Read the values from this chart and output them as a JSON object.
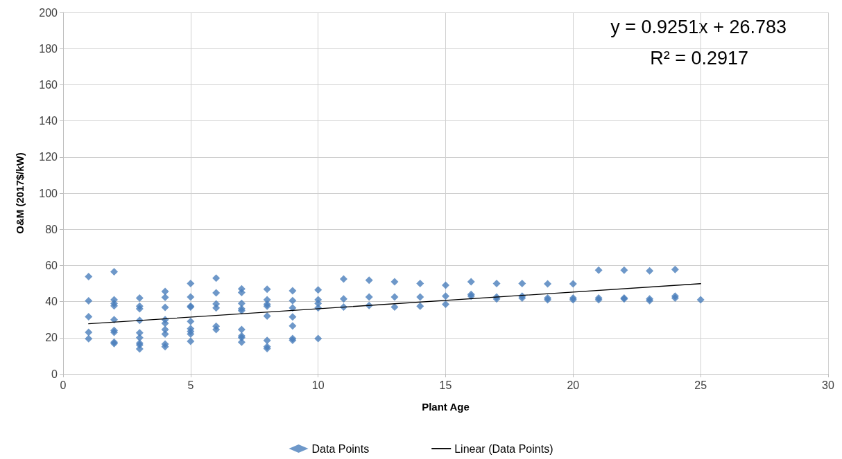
{
  "chart_data": {
    "type": "scatter",
    "xlabel": "Plant Age",
    "ylabel": "O&M (2017$/kW)",
    "xlim": [
      0,
      30
    ],
    "xticks": [
      0,
      5,
      10,
      15,
      20,
      25,
      30
    ],
    "ylim": [
      0,
      200
    ],
    "yticks": [
      0,
      20,
      40,
      60,
      80,
      100,
      120,
      140,
      160,
      180,
      200
    ],
    "grid": true,
    "legend": "bottom",
    "marker": "diamond",
    "annotations": [
      "y = 0.9251x + 26.783",
      "R² = 0.2917"
    ],
    "series": [
      {
        "name": "Data Points",
        "color": "#4a7ebb",
        "x": [
          1,
          1,
          1,
          1,
          1,
          2,
          2,
          2,
          2,
          2,
          2,
          2,
          2,
          2,
          3,
          3,
          3,
          3,
          3,
          3,
          3,
          3,
          3,
          4,
          4,
          4,
          4,
          4,
          4,
          4,
          4,
          4,
          5,
          5,
          5,
          5,
          5,
          5,
          5,
          5,
          5,
          6,
          6,
          6,
          6,
          6,
          6,
          7,
          7,
          7,
          7,
          7,
          7,
          7,
          7,
          7,
          8,
          8,
          8,
          8,
          8,
          8,
          8,
          8,
          9,
          9,
          9,
          9,
          9,
          9,
          9,
          10,
          10,
          10,
          10,
          10,
          11,
          11,
          11,
          12,
          12,
          12,
          13,
          13,
          13,
          14,
          14,
          14,
          15,
          15,
          15,
          16,
          16,
          16,
          17,
          17,
          17,
          18,
          18,
          18,
          19,
          19,
          19,
          20,
          20,
          20,
          21,
          21,
          21,
          22,
          22,
          22,
          23,
          23,
          23,
          24,
          24,
          24,
          25
        ],
        "values": [
          53.8,
          40.4,
          31.6,
          23,
          19.4,
          56.5,
          41,
          39,
          37.6,
          30,
          24,
          23,
          17.5,
          16.8,
          42,
          37.5,
          36,
          29.6,
          22.7,
          20,
          17,
          16,
          13.8,
          45.6,
          42.3,
          36.8,
          30,
          28,
          24.5,
          22,
          16.5,
          15,
          50,
          42.5,
          37.5,
          37,
          29,
          25,
          23.5,
          22,
          18,
          53,
          44.8,
          38.7,
          36.5,
          26.3,
          24.5,
          47,
          45,
          39,
          36,
          35,
          24.5,
          21,
          20,
          17.5,
          46.8,
          41,
          38.5,
          37.5,
          32,
          18.5,
          15,
          14,
          46,
          40.5,
          36.5,
          31.5,
          26.5,
          19.5,
          18.6,
          46.5,
          41,
          39,
          36.5,
          19.5,
          52.5,
          41.5,
          37,
          51.8,
          42.5,
          37.8,
          51,
          42.5,
          37,
          50,
          42.5,
          37.5,
          49,
          43,
          38.5,
          51,
          44,
          43,
          50,
          42.5,
          41.5,
          50,
          43,
          42,
          49.8,
          42,
          41,
          49.8,
          42,
          41,
          57.4,
          42,
          41,
          57.4,
          42,
          41.5,
          57,
          41.5,
          40.5,
          57.8,
          43,
          42,
          41
        ]
      },
      {
        "name": "Linear (Data Points)",
        "type": "line",
        "color": "#000000",
        "marker": "none",
        "line_style": "solid",
        "x": [
          1,
          25
        ],
        "values": [
          27.7,
          49.9
        ]
      }
    ]
  }
}
